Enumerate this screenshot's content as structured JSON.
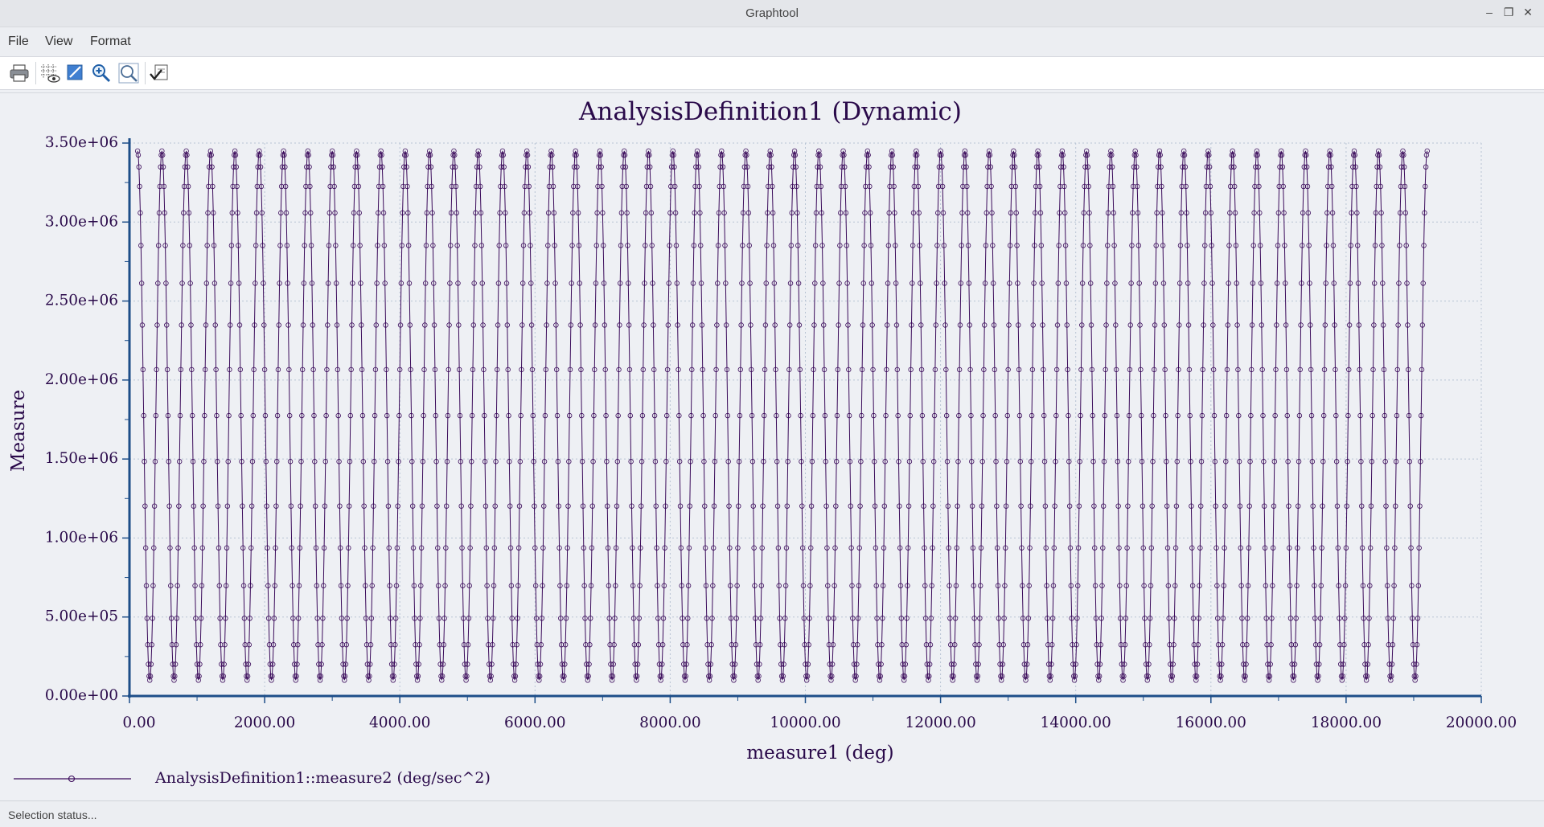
{
  "window": {
    "title": "Graphtool"
  },
  "menu": {
    "items": [
      "File",
      "View",
      "Format"
    ]
  },
  "toolbar": {
    "buttons": [
      "print-icon",
      "grid-visibility-icon",
      "edit-chart-icon",
      "zoom-in-icon",
      "zoom-fit-icon",
      "apply-check-icon"
    ]
  },
  "colors": {
    "series": "#3a0a5a",
    "axis": "#1d4e89",
    "grid": "#b8c4d4",
    "title_text": "#2a0a4a"
  },
  "chart_data": {
    "type": "line",
    "title": "AnalysisDefinition1 (Dynamic)",
    "xlabel": "measure1 (deg)",
    "ylabel": "Measure",
    "xlim": [
      0,
      20000
    ],
    "ylim": [
      0,
      3500000
    ],
    "x_ticks": [
      "0.00",
      "2000.00",
      "4000.00",
      "6000.00",
      "8000.00",
      "10000.00",
      "12000.00",
      "14000.00",
      "16000.00",
      "18000.00",
      "20000.00"
    ],
    "y_ticks": [
      "0.00e+00",
      "5.00e+05",
      "1.00e+06",
      "1.50e+06",
      "2.00e+06",
      "2.50e+06",
      "3.00e+06",
      "3.50e+06"
    ],
    "grid": true,
    "legend": {
      "placement": "bottom-left"
    },
    "series": [
      {
        "name": "AnalysisDefinition1::measure2 (deg/sec^2)",
        "marker": "circle",
        "generator": {
          "x_start": 120,
          "x_end": 19200,
          "period_deg": 360,
          "y_min": 100000,
          "y_max": 3450000,
          "samples_per_period": 36
        }
      }
    ]
  },
  "status": {
    "text": "Selection status..."
  }
}
